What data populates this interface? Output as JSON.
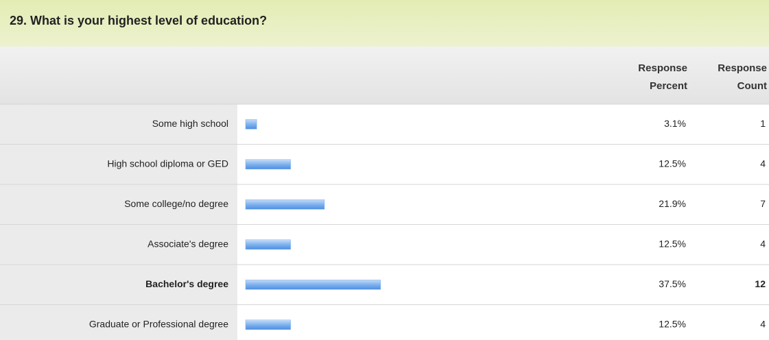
{
  "chart_data": {
    "type": "bar",
    "title": "29. What is your highest level of education?",
    "headers": [
      "Response Percent",
      "Response Count"
    ],
    "categories": [
      "Some high school",
      "High school diploma or GED",
      "Some college/no degree",
      "Associate's degree",
      "Bachelor's degree",
      "Graduate or Professional degree"
    ],
    "values": [
      3.1,
      12.5,
      21.9,
      12.5,
      37.5,
      12.5
    ],
    "value_labels": [
      "3.1%",
      "12.5%",
      "21.9%",
      "12.5%",
      "37.5%",
      "12.5%"
    ],
    "counts": [
      1,
      4,
      7,
      4,
      12,
      4
    ],
    "xlim": [
      0,
      100
    ],
    "color": "#7fb2ee"
  }
}
